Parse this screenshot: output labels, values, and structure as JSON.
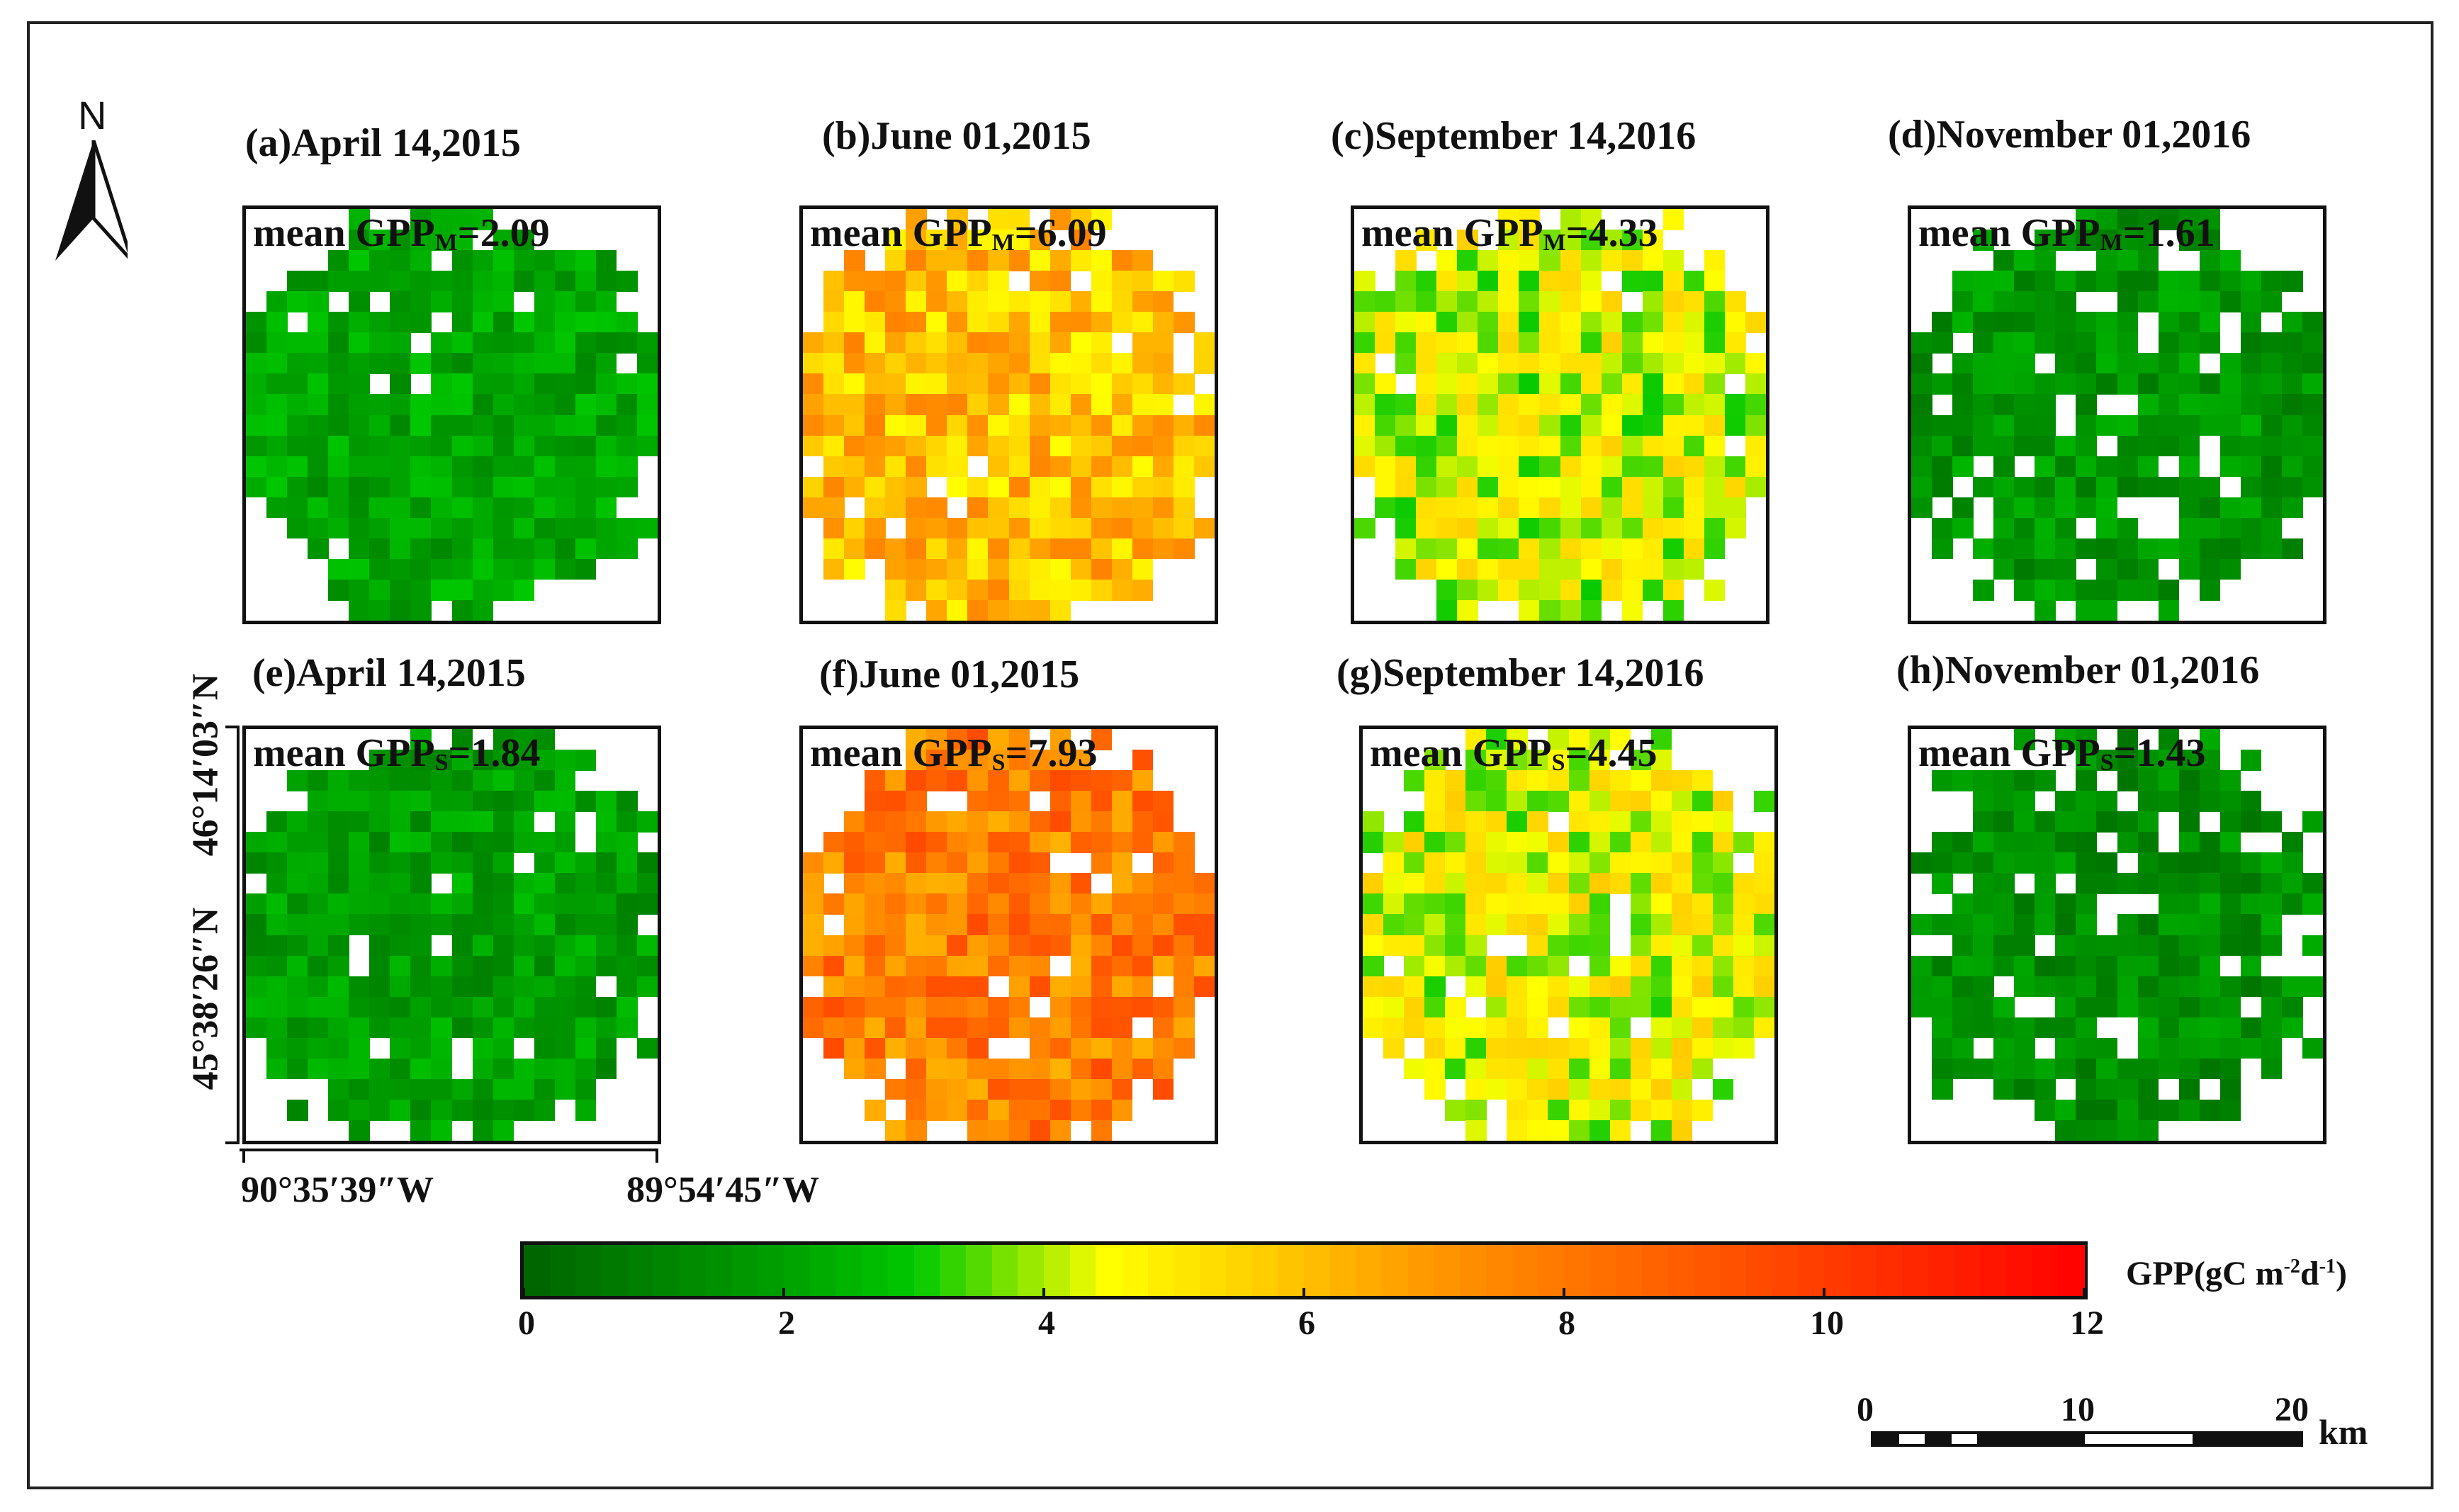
{
  "north_arrow": {
    "label": "N"
  },
  "panels": [
    {
      "id": "a",
      "label": "(a)April 14,2015",
      "mean_prefix": "mean GPP",
      "mean_sub": "M",
      "mean_value": "=2.09",
      "mean_num": 2.09,
      "seed": 11
    },
    {
      "id": "b",
      "label": "(b)June 01,2015",
      "mean_prefix": "mean GPP",
      "mean_sub": "M",
      "mean_value": "=6.09",
      "mean_num": 6.09,
      "seed": 23
    },
    {
      "id": "c",
      "label": "(c)September 14,2016",
      "mean_prefix": "mean GPP",
      "mean_sub": "M",
      "mean_value": "=4.33",
      "mean_num": 4.33,
      "seed": 37
    },
    {
      "id": "d",
      "label": "(d)November 01,2016",
      "mean_prefix": "mean GPP",
      "mean_sub": "M",
      "mean_value": "=1.61",
      "mean_num": 1.61,
      "seed": 41
    },
    {
      "id": "e",
      "label": "(e)April 14,2015",
      "mean_prefix": "mean GPP",
      "mean_sub": "S",
      "mean_value": "=1.84",
      "mean_num": 1.84,
      "seed": 53
    },
    {
      "id": "f",
      "label": "(f)June 01,2015",
      "mean_prefix": "mean GPP",
      "mean_sub": "S",
      "mean_value": "=7.93",
      "mean_num": 7.93,
      "seed": 67
    },
    {
      "id": "g",
      "label": "(g)September 14,2016",
      "mean_prefix": "mean GPP",
      "mean_sub": "S",
      "mean_value": "=4.45",
      "mean_num": 4.45,
      "seed": 71
    },
    {
      "id": "h",
      "label": "(h)November 01,2016",
      "mean_prefix": "mean GPP",
      "mean_sub": "S",
      "mean_value": "=1.43",
      "mean_num": 1.43,
      "seed": 83
    }
  ],
  "coordinates": {
    "lat_top": "46°14′03″N",
    "lat_bottom": "45°38′26″N",
    "lon_left": "90°35′39″W",
    "lon_right": "89°54′45″W"
  },
  "colorbar": {
    "title": "GPP(gC m",
    "title_sup1": "-2",
    "title_mid": "d",
    "title_sup2": "-1",
    "title_end": ")",
    "min": 0,
    "max": 12,
    "ticks": [
      "0",
      "2",
      "4",
      "6",
      "8",
      "10",
      "12"
    ],
    "colors": [
      "#006400",
      "#00a000",
      "#00c800",
      "#ffff00",
      "#ff9600",
      "#ff0000"
    ]
  },
  "scalebar": {
    "ticks": [
      "0",
      "10",
      "20"
    ],
    "unit": "km"
  }
}
